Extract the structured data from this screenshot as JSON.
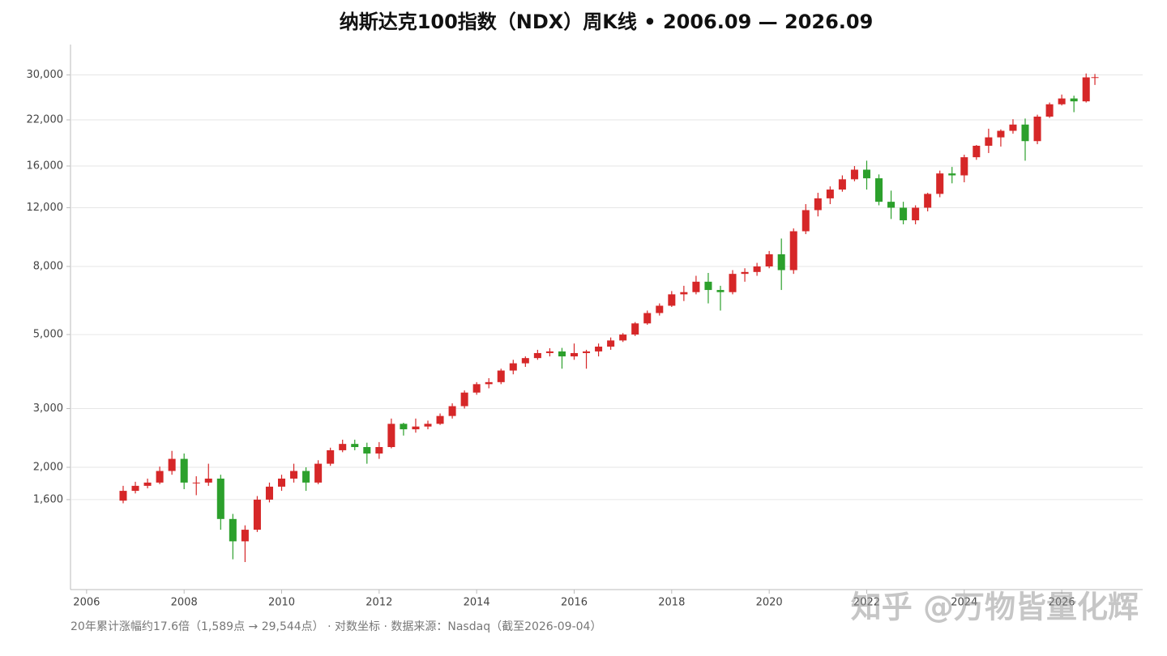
{
  "chart_data": {
    "type": "candlestick",
    "title": "纳斯达克100指数（NDX）周K线 • 2006.09 — 2026.09",
    "footnote": "20年累计涨幅约17.6倍（1,589点 → 29,544点） · 对数坐标 · 数据来源：Nasdaq（截至2026-09-04）",
    "watermark": "知乎 @万物皆量化辉",
    "log_scale": true,
    "grid": true,
    "up_color": "#d62728",
    "down_color": "#2ca02c",
    "xlim": [
      2005.67,
      2027.66
    ],
    "xticks": [
      2006,
      2008,
      2010,
      2012,
      2014,
      2016,
      2018,
      2020,
      2022,
      2024,
      2026
    ],
    "ylim": [
      860,
      37000
    ],
    "yticks": [
      {
        "value": 1600,
        "label": "1,600"
      },
      {
        "value": 2000,
        "label": "2,000"
      },
      {
        "value": 3000,
        "label": "3,000"
      },
      {
        "value": 5000,
        "label": "5,000"
      },
      {
        "value": 8000,
        "label": "8,000"
      },
      {
        "value": 12000,
        "label": "12,000"
      },
      {
        "value": 16000,
        "label": "16,000"
      },
      {
        "value": 22000,
        "label": "22,000"
      },
      {
        "value": 30000,
        "label": "30,000"
      }
    ],
    "x": [
      2006.75,
      2007,
      2007.25,
      2007.5,
      2007.75,
      2008,
      2008.25,
      2008.5,
      2008.75,
      2009,
      2009.25,
      2009.5,
      2009.75,
      2010,
      2010.25,
      2010.5,
      2010.75,
      2011,
      2011.25,
      2011.5,
      2011.75,
      2012,
      2012.25,
      2012.5,
      2012.75,
      2013,
      2013.25,
      2013.5,
      2013.75,
      2014,
      2014.25,
      2014.5,
      2014.75,
      2015,
      2015.25,
      2015.5,
      2015.75,
      2016,
      2016.25,
      2016.5,
      2016.75,
      2017,
      2017.25,
      2017.5,
      2017.75,
      2018,
      2018.25,
      2018.5,
      2018.75,
      2019,
      2019.25,
      2019.5,
      2019.75,
      2020,
      2020.25,
      2020.5,
      2020.75,
      2021,
      2021.25,
      2021.5,
      2021.75,
      2022,
      2022.25,
      2022.5,
      2022.75,
      2023,
      2023.25,
      2023.5,
      2023.75,
      2024,
      2024.25,
      2024.5,
      2024.75,
      2025,
      2025.25,
      2025.5,
      2025.75,
      2026,
      2026.25,
      2026.5,
      2026.68
    ],
    "open": [
      1589,
      1700,
      1760,
      1800,
      1950,
      2120,
      1800,
      1800,
      1850,
      1400,
      1200,
      1300,
      1600,
      1750,
      1850,
      1950,
      1800,
      2050,
      2250,
      2350,
      2300,
      2200,
      2300,
      2700,
      2600,
      2650,
      2700,
      2850,
      3050,
      3350,
      3550,
      3600,
      3900,
      4100,
      4250,
      4400,
      4450,
      4300,
      4400,
      4450,
      4600,
      4800,
      5000,
      5400,
      5800,
      6100,
      6600,
      6700,
      7200,
      6800,
      6700,
      7600,
      7700,
      8000,
      8700,
      7800,
      10200,
      11800,
      12800,
      13600,
      14600,
      15600,
      14700,
      12500,
      12000,
      11000,
      12000,
      13200,
      15200,
      15000,
      17000,
      18400,
      19500,
      20400,
      21300,
      19000,
      22500,
      24500,
      25500,
      25000,
      29500
    ],
    "high": [
      1760,
      1810,
      1850,
      2010,
      2240,
      2200,
      1880,
      2050,
      1900,
      1450,
      1340,
      1640,
      1800,
      1900,
      2050,
      2000,
      2100,
      2290,
      2420,
      2420,
      2370,
      2380,
      2800,
      2720,
      2800,
      2760,
      2900,
      3110,
      3400,
      3600,
      3700,
      3950,
      4200,
      4300,
      4500,
      4550,
      4560,
      4700,
      4500,
      4700,
      4900,
      5050,
      5450,
      5900,
      6200,
      6750,
      7000,
      7500,
      7650,
      7000,
      7800,
      7900,
      8200,
      8900,
      9700,
      10400,
      12300,
      13300,
      13900,
      15000,
      16000,
      16600,
      15100,
      13500,
      12500,
      12200,
      13300,
      15500,
      15900,
      17300,
      18500,
      20700,
      20600,
      22100,
      22200,
      22800,
      24800,
      26200,
      26000,
      30300,
      30200
    ],
    "low": [
      1560,
      1670,
      1730,
      1780,
      1900,
      1720,
      1650,
      1760,
      1300,
      1060,
      1040,
      1280,
      1570,
      1700,
      1800,
      1700,
      1780,
      2020,
      2220,
      2250,
      2050,
      2120,
      2280,
      2490,
      2540,
      2600,
      2680,
      2800,
      3000,
      3300,
      3450,
      3550,
      3800,
      4000,
      4200,
      4300,
      3950,
      4200,
      3950,
      4300,
      4500,
      4750,
      4950,
      5350,
      5700,
      6050,
      6300,
      6600,
      6200,
      5900,
      6600,
      7200,
      7500,
      7900,
      6800,
      7600,
      10000,
      11300,
      12300,
      13400,
      14400,
      13600,
      12200,
      11100,
      10700,
      10700,
      11700,
      12900,
      14200,
      14300,
      16700,
      17500,
      18300,
      20000,
      16600,
      18600,
      22300,
      24300,
      23200,
      24800,
      28000
    ],
    "close": [
      1700,
      1760,
      1800,
      1950,
      2120,
      1800,
      1800,
      1850,
      1400,
      1200,
      1300,
      1600,
      1750,
      1850,
      1950,
      1800,
      2050,
      2250,
      2350,
      2300,
      2200,
      2300,
      2700,
      2600,
      2650,
      2700,
      2850,
      3050,
      3350,
      3550,
      3600,
      3900,
      4100,
      4250,
      4400,
      4450,
      4300,
      4400,
      4450,
      4600,
      4800,
      5000,
      5400,
      5800,
      6100,
      6600,
      6700,
      7200,
      6800,
      6700,
      7600,
      7700,
      8000,
      8700,
      7800,
      10200,
      11800,
      12800,
      13600,
      14600,
      15600,
      14700,
      12500,
      12000,
      11000,
      12000,
      13200,
      15200,
      15000,
      17000,
      18400,
      19500,
      20400,
      21300,
      19000,
      22500,
      24500,
      25500,
      25000,
      29500,
      29544
    ]
  }
}
